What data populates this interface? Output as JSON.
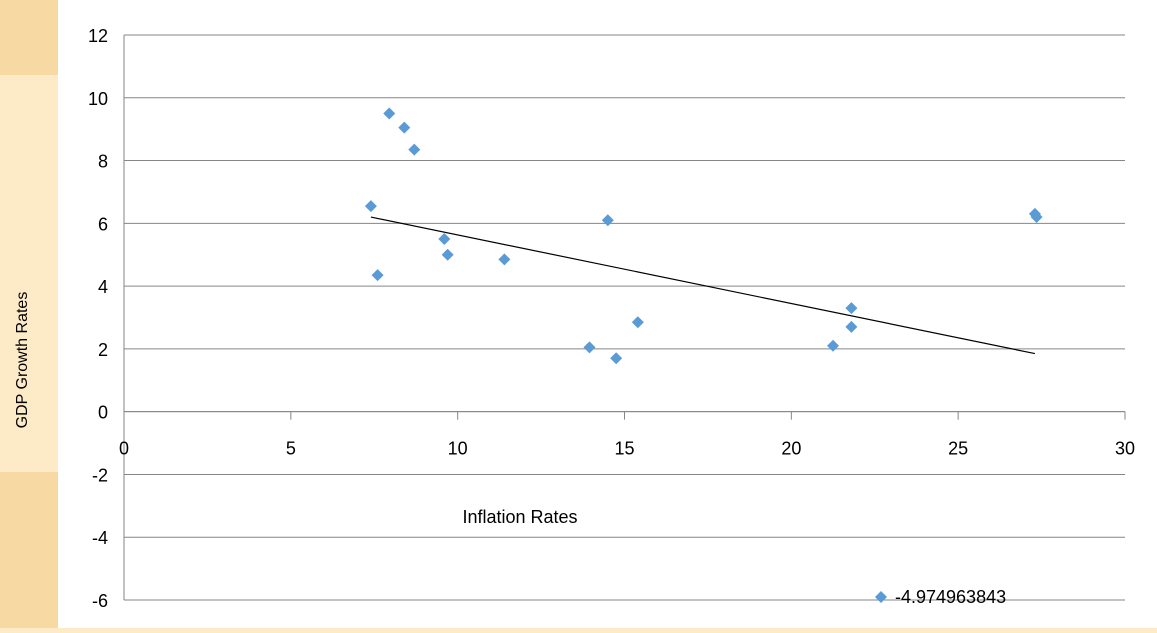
{
  "chart_data": {
    "type": "scatter",
    "title": "",
    "xlabel": "Inflation Rates",
    "ylabel": "GDP Growth Rates",
    "xlim": [
      0,
      30
    ],
    "ylim": [
      -6,
      12
    ],
    "x_ticks": [
      0,
      5,
      10,
      15,
      20,
      25,
      30
    ],
    "y_ticks": [
      -6,
      -4,
      -2,
      0,
      2,
      4,
      6,
      8,
      10,
      12
    ],
    "grid": "horizontal",
    "legend": {
      "position": "bottom-right",
      "entries": [
        "-4.974963843"
      ]
    },
    "series": [
      {
        "name": "-4.974963843",
        "color": "#5B9BD5",
        "marker": "diamond",
        "points": [
          [
            7.4,
            6.55
          ],
          [
            7.6,
            4.35
          ],
          [
            7.95,
            9.5
          ],
          [
            8.4,
            9.05
          ],
          [
            8.7,
            8.35
          ],
          [
            9.6,
            5.5
          ],
          [
            9.7,
            5.0
          ],
          [
            11.4,
            4.85
          ],
          [
            13.95,
            2.05
          ],
          [
            14.5,
            6.1
          ],
          [
            14.75,
            1.7
          ],
          [
            15.4,
            2.85
          ],
          [
            21.25,
            2.1
          ],
          [
            21.8,
            3.3
          ],
          [
            21.8,
            2.7
          ],
          [
            27.3,
            6.3
          ],
          [
            27.35,
            6.2
          ]
        ]
      }
    ],
    "trendline": {
      "type": "linear",
      "color": "#000000",
      "x": [
        7.4,
        27.3
      ],
      "y": [
        6.2,
        1.85
      ]
    }
  }
}
